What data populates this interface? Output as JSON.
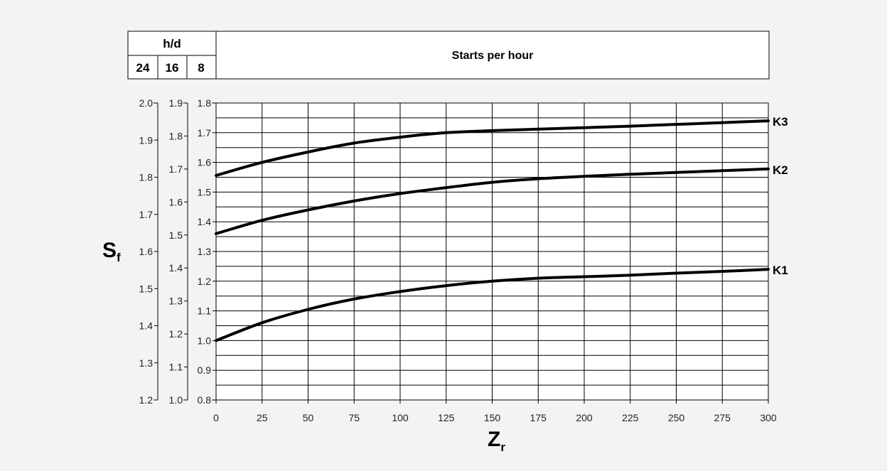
{
  "header": {
    "hd_label": "h/d",
    "hours": [
      "24",
      "16",
      "8"
    ],
    "starts_label": "Starts per hour"
  },
  "chart_data": {
    "type": "line",
    "xlabel": "Z",
    "xlabel_sub": "r",
    "ylabel": "S",
    "ylabel_sub": "f",
    "x_ticks": [
      0,
      25,
      50,
      75,
      100,
      125,
      150,
      175,
      200,
      225,
      250,
      275,
      300
    ],
    "xlim": [
      0,
      300
    ],
    "y_axes": [
      {
        "hours": "8",
        "ylim": [
          0.8,
          1.8
        ],
        "ticks": [
          "0.8",
          "0.9",
          "1.0",
          "1.1",
          "1.2",
          "1.3",
          "1.4",
          "1.5",
          "1.6",
          "1.7",
          "1.8"
        ]
      },
      {
        "hours": "16",
        "ylim": [
          1.0,
          1.9
        ],
        "ticks": [
          "1.0",
          "1.1",
          "1.2",
          "1.3",
          "1.4",
          "1.5",
          "1.6",
          "1.7",
          "1.8",
          "1.9"
        ]
      },
      {
        "hours": "24",
        "ylim": [
          1.2,
          2.0
        ],
        "ticks": [
          "1.2",
          "1.3",
          "1.4",
          "1.5",
          "1.6",
          "1.7",
          "1.8",
          "1.9",
          "2.0"
        ]
      }
    ],
    "grid": true,
    "series": [
      {
        "name": "K1",
        "x": [
          0,
          25,
          50,
          75,
          100,
          125,
          150,
          175,
          200,
          225,
          250,
          275,
          300
        ],
        "y": [
          1.0,
          1.06,
          1.105,
          1.14,
          1.165,
          1.185,
          1.2,
          1.21,
          1.215,
          1.22,
          1.227,
          1.233,
          1.24
        ]
      },
      {
        "name": "K2",
        "x": [
          0,
          25,
          50,
          75,
          100,
          125,
          150,
          175,
          200,
          225,
          250,
          275,
          300
        ],
        "y": [
          1.36,
          1.405,
          1.44,
          1.47,
          1.495,
          1.515,
          1.533,
          1.545,
          1.553,
          1.56,
          1.566,
          1.572,
          1.578
        ]
      },
      {
        "name": "K3",
        "x": [
          0,
          25,
          50,
          75,
          100,
          125,
          150,
          175,
          200,
          225,
          250,
          275,
          300
        ],
        "y": [
          1.556,
          1.6,
          1.635,
          1.665,
          1.685,
          1.7,
          1.707,
          1.712,
          1.717,
          1.722,
          1.728,
          1.734,
          1.74
        ]
      }
    ]
  }
}
